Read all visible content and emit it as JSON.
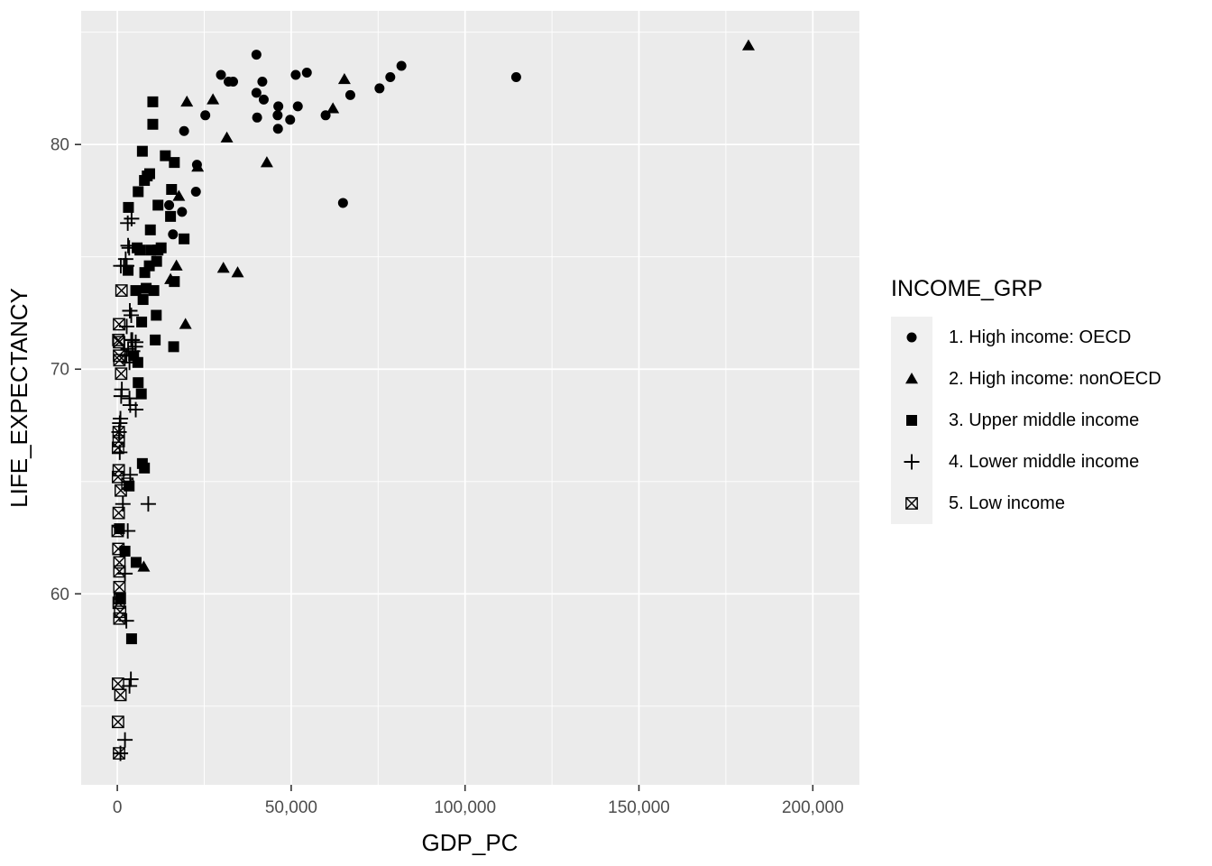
{
  "chart_data": {
    "type": "scatter",
    "xlabel": "GDP_PC",
    "ylabel": "LIFE_EXPECTANCY",
    "legend_title": "INCOME_GRP",
    "legend_position": "right",
    "grid": "on",
    "xlim": [
      -10400,
      213400
    ],
    "ylim": [
      51.5,
      85.95
    ],
    "x_ticks": [
      {
        "value": 0,
        "label": "0"
      },
      {
        "value": 50000,
        "label": "50,000"
      },
      {
        "value": 100000,
        "label": "100,000"
      },
      {
        "value": 150000,
        "label": "150,000"
      },
      {
        "value": 200000,
        "label": "200,000"
      }
    ],
    "y_ticks": [
      {
        "value": 60,
        "label": "60"
      },
      {
        "value": 70,
        "label": "70"
      },
      {
        "value": 80,
        "label": "80"
      }
    ],
    "x_minor": [
      25000,
      75000,
      125000,
      175000
    ],
    "y_minor": [
      55,
      65,
      75,
      85
    ],
    "colors": {
      "panel_background": "#EBEBEB",
      "gridline": "#FFFFFF",
      "tick_label": "#4D4D4D",
      "tick_mark": "#333333",
      "marker": "#000000",
      "legend_key_background": "#F0F0F0",
      "figure_background": "#FFFFFF"
    },
    "series": [
      {
        "name": "1. High income: OECD",
        "shape": "circle",
        "points": [
          [
            40000,
            84.0
          ],
          [
            29800,
            83.1
          ],
          [
            32000,
            82.8
          ],
          [
            33300,
            82.8
          ],
          [
            41700,
            82.8
          ],
          [
            51300,
            83.1
          ],
          [
            54500,
            83.2
          ],
          [
            67000,
            82.2
          ],
          [
            75400,
            82.5
          ],
          [
            78500,
            83.0
          ],
          [
            81700,
            83.5
          ],
          [
            114700,
            83.0
          ],
          [
            25300,
            81.3
          ],
          [
            19200,
            80.6
          ],
          [
            40000,
            82.3
          ],
          [
            42100,
            82.0
          ],
          [
            46300,
            81.7
          ],
          [
            46100,
            81.3
          ],
          [
            40200,
            81.2
          ],
          [
            49700,
            81.1
          ],
          [
            51900,
            81.7
          ],
          [
            46200,
            80.7
          ],
          [
            59900,
            81.3
          ],
          [
            22900,
            79.1
          ],
          [
            22600,
            77.9
          ],
          [
            64900,
            77.4
          ],
          [
            18600,
            77.0
          ],
          [
            14900,
            77.3
          ],
          [
            16000,
            76.0
          ]
        ]
      },
      {
        "name": "2. High income: nonOECD",
        "shape": "triangle",
        "points": [
          [
            181500,
            84.4
          ],
          [
            65300,
            82.9
          ],
          [
            62000,
            81.6
          ],
          [
            20000,
            81.9
          ],
          [
            27500,
            82.0
          ],
          [
            31500,
            80.3
          ],
          [
            43000,
            79.2
          ],
          [
            23100,
            79.0
          ],
          [
            17700,
            77.7
          ],
          [
            30500,
            74.5
          ],
          [
            34600,
            74.3
          ],
          [
            17000,
            74.6
          ],
          [
            15300,
            74.0
          ],
          [
            19600,
            72.0
          ],
          [
            7600,
            61.2
          ]
        ]
      },
      {
        "name": "3. Upper middle income",
        "shape": "square",
        "points": [
          [
            10200,
            81.9
          ],
          [
            10200,
            80.9
          ],
          [
            7200,
            79.7
          ],
          [
            13800,
            79.5
          ],
          [
            16400,
            79.2
          ],
          [
            8600,
            78.6
          ],
          [
            9300,
            78.7
          ],
          [
            7800,
            78.4
          ],
          [
            6000,
            77.9
          ],
          [
            15600,
            78.0
          ],
          [
            11700,
            77.3
          ],
          [
            3200,
            77.2
          ],
          [
            15300,
            76.8
          ],
          [
            9500,
            76.2
          ],
          [
            19200,
            75.8
          ],
          [
            5700,
            75.4
          ],
          [
            9600,
            75.3
          ],
          [
            12600,
            75.4
          ],
          [
            6500,
            75.3
          ],
          [
            11700,
            75.3
          ],
          [
            3100,
            74.4
          ],
          [
            7900,
            74.3
          ],
          [
            9200,
            74.6
          ],
          [
            11300,
            74.8
          ],
          [
            5300,
            73.5
          ],
          [
            8300,
            73.6
          ],
          [
            10500,
            73.5
          ],
          [
            7400,
            73.1
          ],
          [
            16400,
            73.9
          ],
          [
            7000,
            72.1
          ],
          [
            11200,
            72.4
          ],
          [
            10900,
            71.3
          ],
          [
            16200,
            71.0
          ],
          [
            4700,
            70.6
          ],
          [
            5900,
            70.3
          ],
          [
            6000,
            69.4
          ],
          [
            6900,
            68.9
          ],
          [
            7200,
            65.8
          ],
          [
            7800,
            65.6
          ],
          [
            3400,
            64.8
          ],
          [
            2200,
            61.9
          ],
          [
            5400,
            61.4
          ],
          [
            600,
            62.9
          ],
          [
            900,
            59.8
          ],
          [
            4100,
            58.0
          ]
        ]
      },
      {
        "name": "4. Lower middle income",
        "shape": "plus",
        "points": [
          [
            4100,
            76.7
          ],
          [
            3000,
            76.5
          ],
          [
            3400,
            75.4
          ],
          [
            3100,
            75.5
          ],
          [
            2400,
            74.9
          ],
          [
            1900,
            74.6
          ],
          [
            2700,
            74.6
          ],
          [
            1000,
            74.6
          ],
          [
            3600,
            72.6
          ],
          [
            4000,
            72.4
          ],
          [
            2700,
            71.9
          ],
          [
            4000,
            71.3
          ],
          [
            4300,
            71.3
          ],
          [
            5300,
            71.2
          ],
          [
            5200,
            71.0
          ],
          [
            3100,
            70.9
          ],
          [
            4400,
            70.8
          ],
          [
            2600,
            70.6
          ],
          [
            3500,
            70.3
          ],
          [
            1300,
            69.1
          ],
          [
            1100,
            68.8
          ],
          [
            3500,
            68.7
          ],
          [
            3700,
            68.4
          ],
          [
            5300,
            68.2
          ],
          [
            900,
            67.8
          ],
          [
            700,
            67.6
          ],
          [
            500,
            67.2
          ],
          [
            700,
            66.3
          ],
          [
            3700,
            65.3
          ],
          [
            1600,
            64.0
          ],
          [
            8900,
            64.0
          ],
          [
            3000,
            62.8
          ],
          [
            2200,
            60.9
          ],
          [
            2600,
            58.8
          ],
          [
            3900,
            56.2
          ],
          [
            3500,
            55.9
          ],
          [
            2200,
            53.5
          ],
          [
            900,
            52.9
          ]
        ]
      },
      {
        "name": "5. Low income",
        "shape": "boxed-x",
        "points": [
          [
            1200,
            73.5
          ],
          [
            500,
            72.0
          ],
          [
            300,
            71.3
          ],
          [
            500,
            71.2
          ],
          [
            600,
            70.4
          ],
          [
            500,
            70.6
          ],
          [
            1100,
            69.8
          ],
          [
            400,
            67.2
          ],
          [
            400,
            66.8
          ],
          [
            200,
            66.5
          ],
          [
            400,
            65.5
          ],
          [
            200,
            65.2
          ],
          [
            2900,
            64.9
          ],
          [
            1000,
            64.6
          ],
          [
            400,
            63.6
          ],
          [
            100,
            62.8
          ],
          [
            300,
            62.0
          ],
          [
            600,
            61.4
          ],
          [
            600,
            61.0
          ],
          [
            600,
            60.3
          ],
          [
            400,
            59.6
          ],
          [
            800,
            59.2
          ],
          [
            600,
            58.9
          ],
          [
            700,
            59.8
          ],
          [
            200,
            56.0
          ],
          [
            900,
            55.5
          ],
          [
            200,
            54.3
          ],
          [
            500,
            52.9
          ]
        ]
      }
    ]
  }
}
